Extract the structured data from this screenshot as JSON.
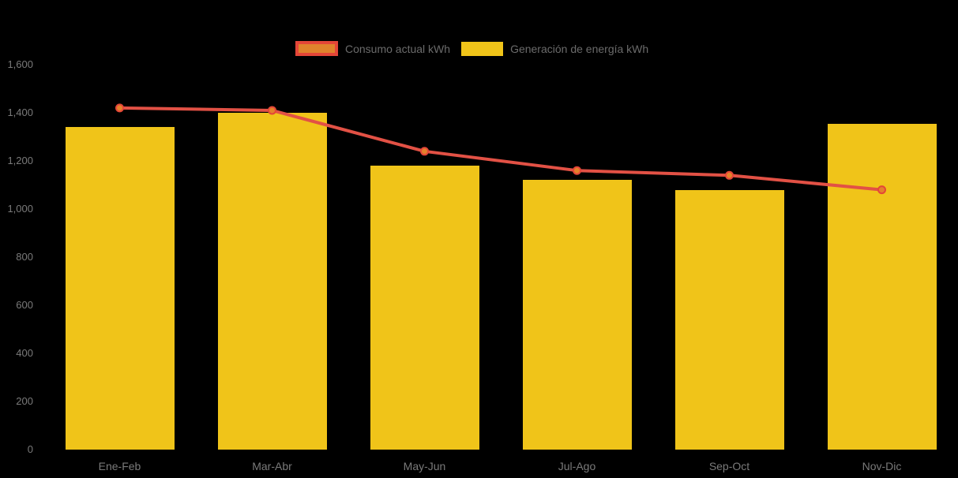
{
  "chart_data": {
    "type": "bar+line",
    "title": "",
    "categories": [
      "Ene-Feb",
      "Mar-Abr",
      "May-Jun",
      "Jul-Ago",
      "Sep-Oct",
      "Nov-Dic"
    ],
    "series": [
      {
        "name": "Consumo actual kWh",
        "type": "line",
        "color": "#e25145",
        "values": [
          1420,
          1410,
          1240,
          1160,
          1140,
          1080
        ]
      },
      {
        "name": "Generación de energía kWh",
        "type": "bar",
        "color": "#f0c419",
        "values": [
          1340,
          1400,
          1180,
          1120,
          1080,
          1355
        ]
      }
    ],
    "xlabel": "",
    "ylabel": "",
    "ylim": [
      0,
      1600
    ],
    "ytick_step": 200,
    "yticks": [
      {
        "value": 0,
        "label": "0"
      },
      {
        "value": 200,
        "label": "200"
      },
      {
        "value": 400,
        "label": "400"
      },
      {
        "value": 600,
        "label": "600"
      },
      {
        "value": 800,
        "label": "800"
      },
      {
        "value": 1000,
        "label": "1,000"
      },
      {
        "value": 1200,
        "label": "1,200"
      },
      {
        "value": 1400,
        "label": "1,400"
      },
      {
        "value": 1600,
        "label": "1,600"
      }
    ],
    "grid": false,
    "legend_position": "top",
    "legend": [
      {
        "label": "Consumo actual kWh",
        "swatch_fill": "#e0832c",
        "swatch_border": "#e44638"
      },
      {
        "label": "Generación de energía kWh",
        "swatch_fill": "#f0c419",
        "swatch_border": "#f0c419"
      }
    ],
    "colors": {
      "background": "#000000",
      "bar": "#f0c419",
      "line": "#e25145",
      "marker_fill": "#e5812b",
      "marker_stroke": "#e44638",
      "axis_text": "#7a7a7a",
      "legend_text": "#6b6b6b"
    }
  }
}
